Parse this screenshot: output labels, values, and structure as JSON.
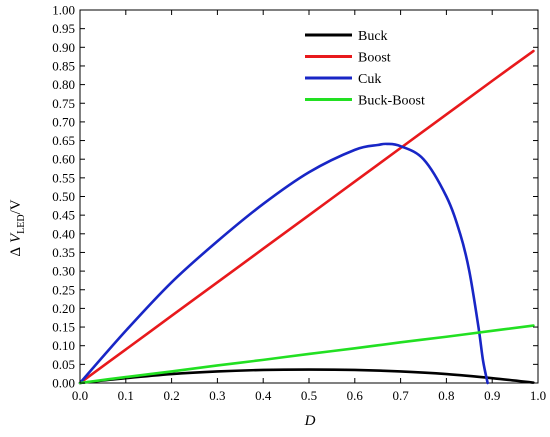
{
  "chart_data": {
    "type": "line",
    "xlabel": "D",
    "ylabel": {
      "delta": "Δ",
      "var": "V",
      "sub": "LED",
      "tail": "/V"
    },
    "xlim": [
      0.0,
      1.0
    ],
    "ylim": [
      0.0,
      1.0
    ],
    "xticks": [
      "0.0",
      "0.1",
      "0.2",
      "0.3",
      "0.4",
      "0.5",
      "0.6",
      "0.7",
      "0.8",
      "0.9",
      "1.0"
    ],
    "yticks": [
      "0.00",
      "0.05",
      "0.10",
      "0.15",
      "0.20",
      "0.25",
      "0.30",
      "0.35",
      "0.40",
      "0.45",
      "0.50",
      "0.55",
      "0.60",
      "0.65",
      "0.70",
      "0.75",
      "0.80",
      "0.85",
      "0.90",
      "0.95",
      "1.00"
    ],
    "grid": false,
    "legend_position": "top-right",
    "series": [
      {
        "name": "Buck",
        "color": "#000000",
        "x": [
          0.0,
          0.1,
          0.2,
          0.3,
          0.4,
          0.5,
          0.6,
          0.7,
          0.8,
          0.9,
          0.99
        ],
        "values": [
          0.0,
          0.013,
          0.024,
          0.031,
          0.035,
          0.036,
          0.035,
          0.031,
          0.024,
          0.013,
          0.001
        ]
      },
      {
        "name": "Boost",
        "color": "#e8191c",
        "x": [
          0.0,
          0.1,
          0.2,
          0.3,
          0.4,
          0.5,
          0.6,
          0.7,
          0.8,
          0.9,
          0.99
        ],
        "values": [
          0.0,
          0.09,
          0.18,
          0.27,
          0.36,
          0.45,
          0.54,
          0.63,
          0.72,
          0.81,
          0.89
        ]
      },
      {
        "name": "Cuk",
        "color": "#1826c6",
        "x": [
          0.0,
          0.1,
          0.2,
          0.3,
          0.4,
          0.5,
          0.6,
          0.65,
          0.67,
          0.7,
          0.75,
          0.8,
          0.83,
          0.85,
          0.87,
          0.88,
          0.89
        ],
        "values": [
          0.0,
          0.14,
          0.27,
          0.38,
          0.48,
          0.565,
          0.625,
          0.638,
          0.641,
          0.635,
          0.6,
          0.5,
          0.4,
          0.3,
          0.15,
          0.06,
          0.0
        ]
      },
      {
        "name": "Buck-Boost",
        "color": "#22e022",
        "x": [
          0.0,
          0.1,
          0.2,
          0.3,
          0.4,
          0.5,
          0.6,
          0.7,
          0.8,
          0.9,
          0.99
        ],
        "values": [
          0.0,
          0.016,
          0.031,
          0.047,
          0.062,
          0.078,
          0.093,
          0.109,
          0.124,
          0.14,
          0.154
        ]
      }
    ]
  }
}
